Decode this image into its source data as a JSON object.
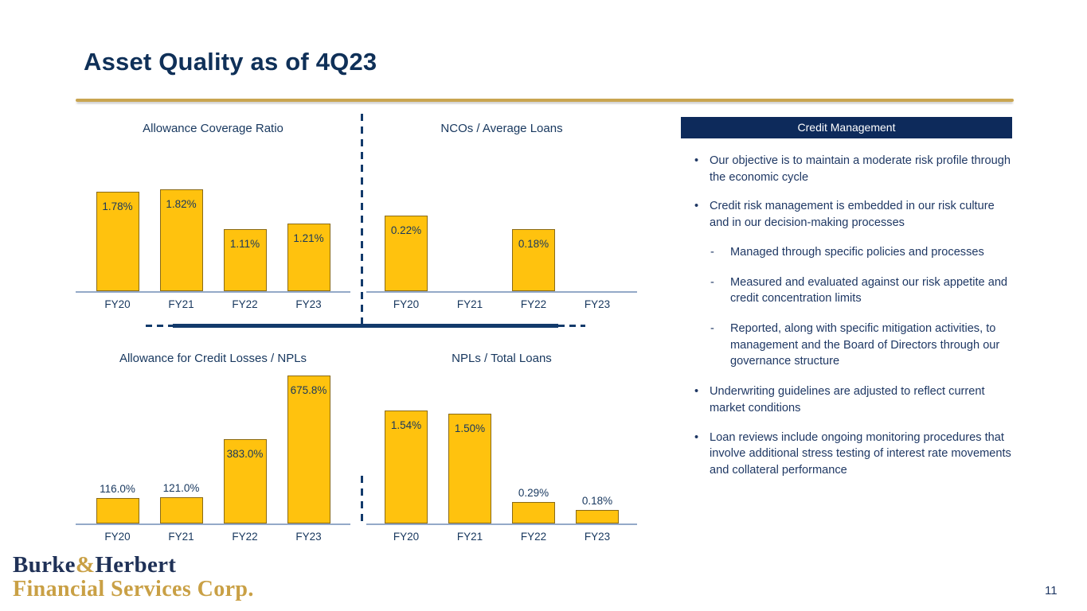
{
  "slide": {
    "title": "Asset Quality as of 4Q23",
    "page_number": "11"
  },
  "colors": {
    "bar_fill": "#FFC20E",
    "bar_border": "#8A6A16",
    "navy": "#17375E",
    "header_bg": "#0D2A5B",
    "gold_rule": "#C9A551",
    "logo_gold": "#C9A045"
  },
  "chart_data": [
    {
      "type": "bar",
      "title": "Allowance Coverage Ratio",
      "categories": [
        "FY20",
        "FY21",
        "FY22",
        "FY23"
      ],
      "values": [
        1.78,
        1.82,
        1.11,
        1.21
      ],
      "labels": [
        "1.78%",
        "1.82%",
        "1.11%",
        "1.21%"
      ],
      "xlabel": "",
      "ylabel": "",
      "ylim": [
        0,
        2.7
      ],
      "grid": false,
      "legend": "none"
    },
    {
      "type": "bar",
      "title": "NCOs / Average Loans",
      "categories": [
        "FY20",
        "FY21",
        "FY22",
        "FY23"
      ],
      "values": [
        0.22,
        0,
        0.18,
        0
      ],
      "labels": [
        "0.22%",
        "",
        "0.18%",
        ""
      ],
      "xlabel": "",
      "ylabel": "",
      "ylim": [
        0,
        0.44
      ],
      "grid": false,
      "legend": "none"
    },
    {
      "type": "bar",
      "title": "Allowance for Credit Losses / NPLs",
      "categories": [
        "FY20",
        "FY21",
        "FY22",
        "FY23"
      ],
      "values": [
        116.0,
        121.0,
        383.0,
        675.8
      ],
      "labels": [
        "116.0%",
        "121.0%",
        "383.0%",
        "675.8%"
      ],
      "xlabel": "",
      "ylabel": "",
      "ylim": [
        0,
        700
      ],
      "grid": false,
      "legend": "none"
    },
    {
      "type": "bar",
      "title": "NPLs / Total Loans",
      "categories": [
        "FY20",
        "FY21",
        "FY22",
        "FY23"
      ],
      "values": [
        1.54,
        1.5,
        0.29,
        0.18
      ],
      "labels": [
        "1.54%",
        "1.50%",
        "0.29%",
        "0.18%"
      ],
      "xlabel": "",
      "ylabel": "",
      "ylim": [
        0,
        2.1
      ],
      "grid": false,
      "legend": "none"
    }
  ],
  "credit_management": {
    "header": "Credit Management",
    "bullets": [
      {
        "level": 1,
        "text": "Our objective is to maintain a moderate risk profile through the economic cycle"
      },
      {
        "level": 1,
        "text": "Credit risk management is embedded in our risk culture and in our decision-making processes"
      },
      {
        "level": 2,
        "text": "Managed through specific policies and processes"
      },
      {
        "level": 2,
        "text": "Measured and evaluated against our risk appetite and credit concentration limits"
      },
      {
        "level": 2,
        "text": "Reported, along with specific mitigation activities, to management and the Board of Directors through our governance structure"
      },
      {
        "level": 1,
        "text": "Underwriting guidelines are adjusted to reflect current market conditions"
      },
      {
        "level": 1,
        "text": "Loan reviews include ongoing monitoring procedures that involve additional stress testing of interest rate movements and collateral performance"
      }
    ]
  },
  "logo": {
    "name_part1": "Burke",
    "ampersand": "&",
    "name_part2": "Herbert",
    "line2": "Financial Services Corp."
  }
}
